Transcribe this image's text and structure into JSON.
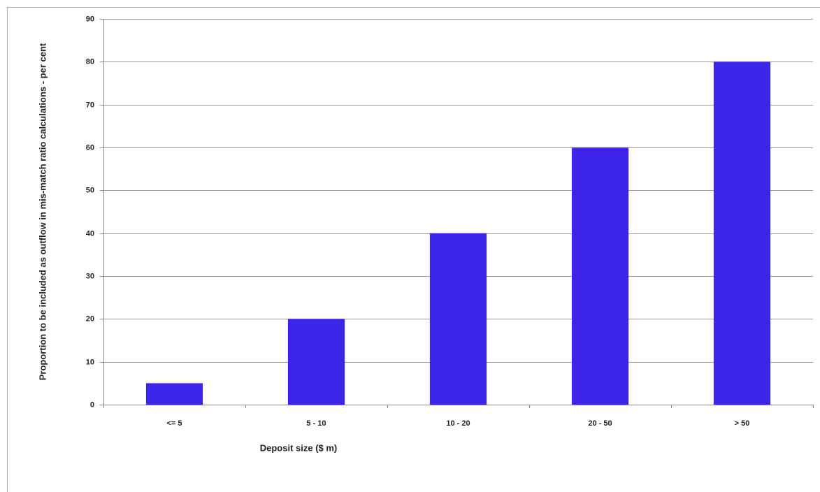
{
  "chart_data": {
    "type": "bar",
    "x_label": "Deposit size ($ m)",
    "y_label": "Proportion to be included as outflow in mis-match ratio calculations - per cent",
    "categories": [
      "<= 5",
      "5 - 10",
      "10 - 20",
      "20 - 50",
      "> 50"
    ],
    "values": [
      5,
      20,
      40,
      60,
      80
    ],
    "color": "#3a25e8",
    "ylim": [
      0,
      90
    ],
    "yticks": [
      0,
      10,
      20,
      30,
      40,
      50,
      60,
      70,
      80,
      90
    ],
    "grid": true
  }
}
